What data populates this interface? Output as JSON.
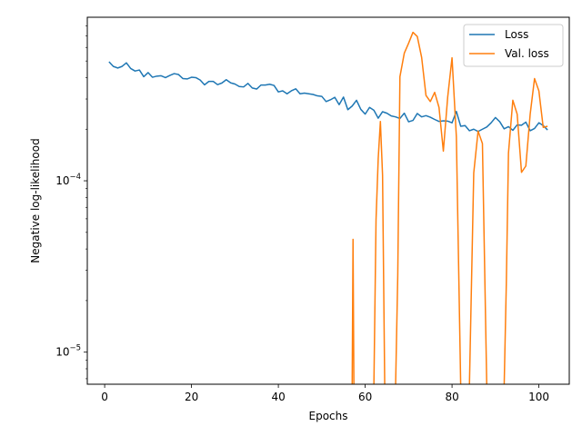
{
  "chart_data": {
    "type": "line",
    "title": "",
    "xlabel": "Epochs",
    "ylabel": "Negative log-likelihood",
    "yscale": "log",
    "xlim": [
      -4,
      107
    ],
    "ylim": [
      6.5e-06,
      0.0009
    ],
    "x_ticks": [
      {
        "value": 0,
        "label": "0"
      },
      {
        "value": 20,
        "label": "20"
      },
      {
        "value": 40,
        "label": "40"
      },
      {
        "value": 60,
        "label": "60"
      },
      {
        "value": 80,
        "label": "80"
      },
      {
        "value": 100,
        "label": "100"
      }
    ],
    "y_ticks": [
      {
        "value": 1e-05,
        "base": "10",
        "exp": "−5"
      },
      {
        "value": 0.0001,
        "base": "10",
        "exp": "−4"
      }
    ],
    "grid": false,
    "legend_position": "top-right",
    "series": [
      {
        "name": "Loss",
        "color": "#1f77b4",
        "x": [
          1,
          2,
          3,
          4,
          5,
          6,
          7,
          8,
          9,
          10,
          11,
          12,
          13,
          14,
          15,
          16,
          17,
          18,
          19,
          20,
          21,
          22,
          23,
          24,
          25,
          26,
          27,
          28,
          29,
          30,
          31,
          32,
          33,
          34,
          35,
          36,
          37,
          38,
          39,
          40,
          41,
          42,
          43,
          44,
          45,
          46,
          47,
          48,
          49,
          50,
          51,
          52,
          53,
          54,
          55,
          56,
          57,
          58,
          59,
          60,
          61,
          62,
          63,
          64,
          65,
          66,
          67,
          68,
          69,
          70,
          71,
          72,
          73,
          74,
          75,
          76,
          77,
          78,
          79,
          80,
          81,
          82,
          83,
          84,
          85,
          86,
          87,
          88,
          89,
          90,
          91,
          92,
          93,
          94,
          95,
          96,
          97,
          98,
          99,
          100,
          101,
          102
        ],
        "y": [
          0.000495,
          0.000465,
          0.000455,
          0.000465,
          0.000488,
          0.000452,
          0.000437,
          0.000443,
          0.000405,
          0.000428,
          0.000402,
          0.000408,
          0.00041,
          0.0004,
          0.000412,
          0.000422,
          0.000417,
          0.000395,
          0.000393,
          0.000402,
          0.0004,
          0.000387,
          0.000363,
          0.00038,
          0.00038,
          0.000364,
          0.000372,
          0.000389,
          0.000373,
          0.000367,
          0.000355,
          0.000353,
          0.00037,
          0.000348,
          0.000343,
          0.000362,
          0.000362,
          0.000366,
          0.00036,
          0.00033,
          0.000335,
          0.000322,
          0.000335,
          0.000344,
          0.000322,
          0.000325,
          0.000322,
          0.000319,
          0.000313,
          0.000311,
          0.00029,
          0.000297,
          0.000307,
          0.000278,
          0.000308,
          0.00026,
          0.000273,
          0.000295,
          0.000261,
          0.000245,
          0.000268,
          0.000258,
          0.000232,
          0.000253,
          0.000248,
          0.000239,
          0.000236,
          0.000231,
          0.000248,
          0.000221,
          0.000225,
          0.000247,
          0.000236,
          0.00024,
          0.000235,
          0.000228,
          0.000222,
          0.000224,
          0.000223,
          0.000218,
          0.000254,
          0.000208,
          0.00021,
          0.000196,
          0.0002,
          0.000194,
          0.0002,
          0.000206,
          0.000218,
          0.000234,
          0.000221,
          0.000201,
          0.000207,
          0.000197,
          0.000212,
          0.000211,
          0.00022,
          0.000196,
          0.000202,
          0.000218,
          0.00021,
          0.000198
        ]
      },
      {
        "name": "Val. loss",
        "color": "#ff7f0e",
        "x": [
          57,
          57.2,
          57.4,
          62,
          62.5,
          63,
          63.5,
          64,
          64.5,
          65,
          66,
          67,
          67.5,
          68,
          69,
          70,
          71,
          72,
          73,
          74,
          75,
          76,
          77,
          78,
          79,
          80,
          81,
          82,
          83,
          84,
          85,
          86,
          87,
          88,
          89,
          90,
          91,
          92,
          92.5,
          93,
          94,
          95,
          96,
          97,
          98,
          99,
          100,
          101,
          102
        ],
        "y": [
          6.3e-06,
          4.55e-05,
          6.3e-06,
          6.3e-06,
          5.95e-05,
          0.000135,
          0.000222,
          0.000108,
          6.3e-06,
          6.3e-06,
          6.3e-06,
          6.3e-06,
          2.8e-05,
          0.000405,
          0.000555,
          0.000635,
          0.000735,
          0.000695,
          0.000525,
          0.000315,
          0.00029,
          0.000328,
          0.000268,
          0.000149,
          0.000308,
          0.000522,
          0.00018,
          6.3e-06,
          6.3e-06,
          6.3e-06,
          0.000111,
          0.000195,
          0.000165,
          6.3e-06,
          6.3e-06,
          6.3e-06,
          6.3e-06,
          6.3e-06,
          2.5e-05,
          0.000145,
          0.000295,
          0.000245,
          0.000112,
          0.000122,
          0.000245,
          0.000395,
          0.000335,
          0.000205,
          0.000208
        ]
      }
    ]
  }
}
